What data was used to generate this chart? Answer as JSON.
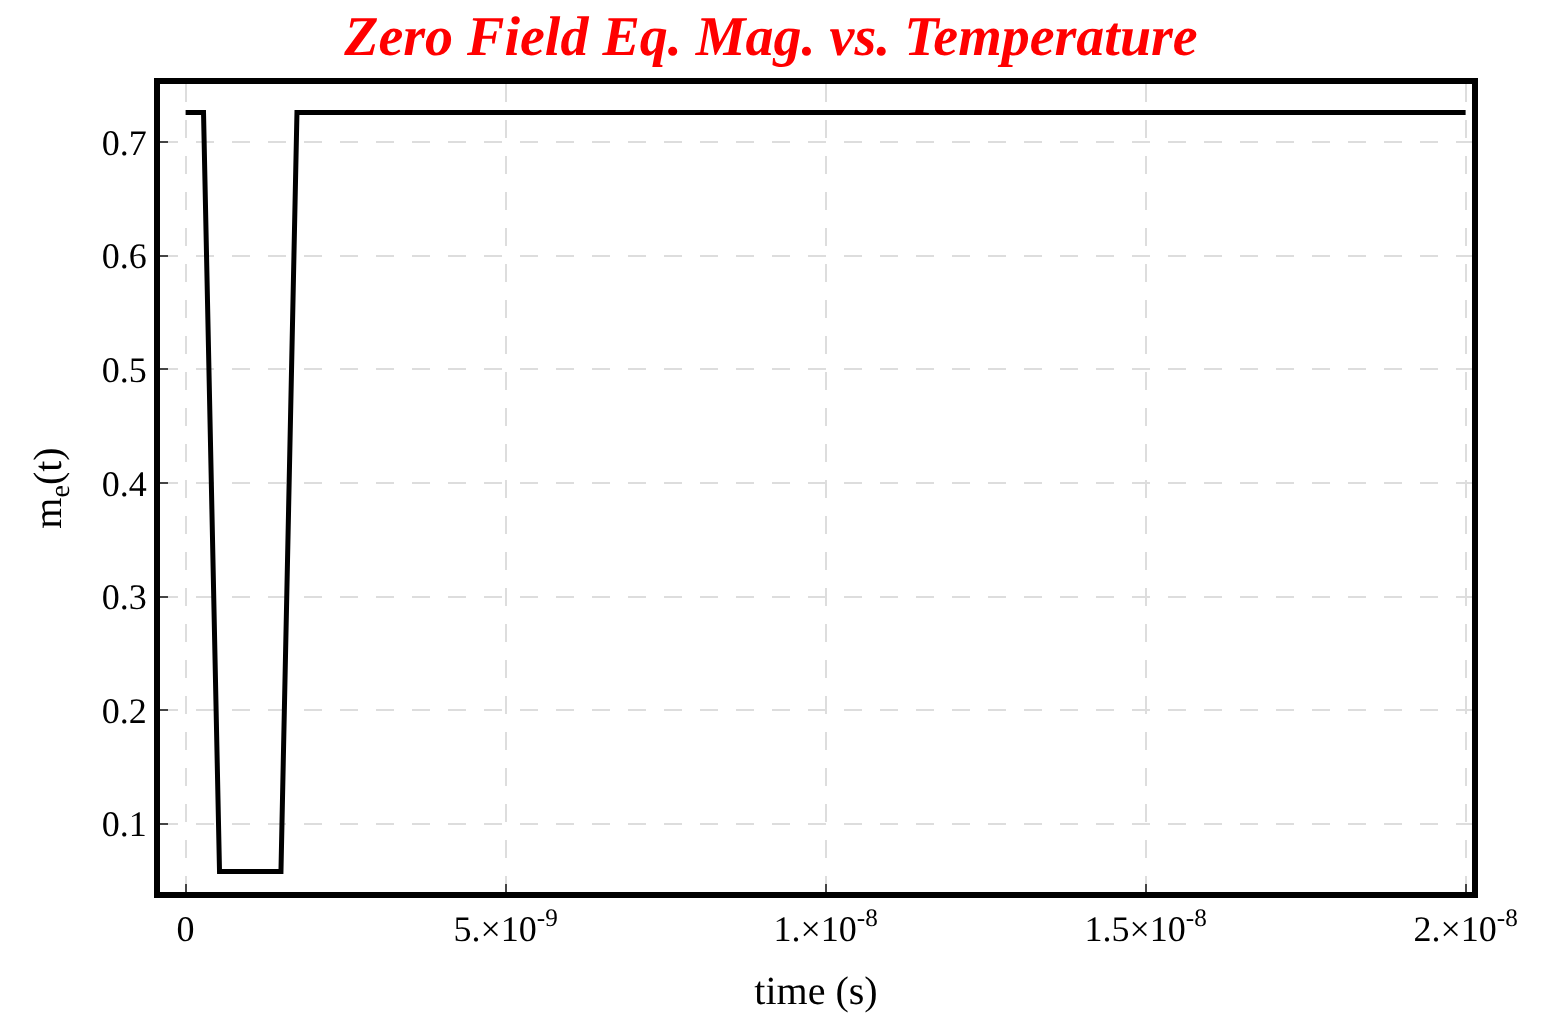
{
  "chart_data": {
    "type": "line",
    "title": "Zero Field Eq. Mag. vs. Temperature",
    "xlabel": "time (s)",
    "ylabel": "m$_{e}$(t)",
    "series": [
      {
        "color": "#000000",
        "x": [
          0,
          2.8e-10,
          5.3e-10,
          1.49e-09,
          1.74e-09,
          2e-08
        ],
        "values": [
          0.726,
          0.726,
          0.058,
          0.058,
          0.726,
          0.726
        ]
      }
    ],
    "xlim": [
      -4e-10,
      2.01e-08
    ],
    "ylim": [
      0.04,
      0.751
    ],
    "xticks": [
      0,
      {
        "value": 5e-09,
        "label": "5.×10$^{-9}$"
      },
      {
        "value": 1e-08,
        "label": "1.×10$^{-8}$"
      },
      {
        "value": 1.5e-08,
        "label": "1.5×10$^{-8}$"
      },
      {
        "value": 2e-08,
        "label": "2.×10$^{-8}$"
      }
    ],
    "yticks": [
      0.1,
      0.2,
      0.3,
      0.4,
      0.5,
      0.6,
      0.7
    ],
    "grid": true,
    "legend": false,
    "marker": "none",
    "line_style": "solid"
  }
}
